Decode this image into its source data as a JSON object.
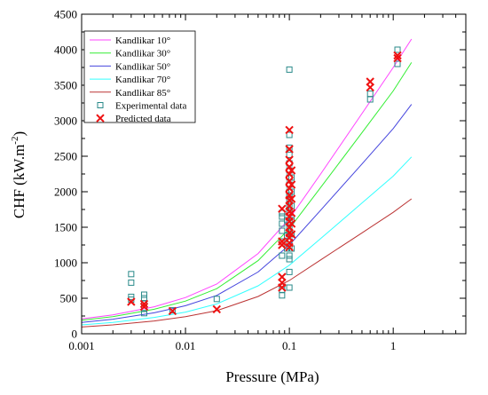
{
  "chart_data": {
    "type": "scatter",
    "xlabel": "Pressure (MPa)",
    "ylabel": "CHF (kW.m",
    "ylabel_sup": "-2",
    "ylabel_end": ")",
    "xscale": "log",
    "xlim": [
      0.001,
      5
    ],
    "ylim": [
      0,
      4500
    ],
    "x_ticks": [
      0.001,
      0.01,
      0.1,
      1
    ],
    "x_tick_labels": [
      "0.001",
      "0.01",
      "0.1",
      "1"
    ],
    "y_ticks": [
      0,
      500,
      1000,
      1500,
      2000,
      2500,
      3000,
      3500,
      4000,
      4500
    ],
    "y_tick_labels": [
      "0",
      "500",
      "1000",
      "1500",
      "2000",
      "2500",
      "3000",
      "3500",
      "4000",
      "4500"
    ],
    "grid": false,
    "legend_position": "top-left",
    "curves": [
      {
        "name": "Kandlikar 10°",
        "color": "#ff44ff",
        "x": [
          0.001,
          0.002,
          0.005,
          0.01,
          0.02,
          0.05,
          0.1,
          0.2,
          0.5,
          1.0,
          1.5
        ],
        "y": [
          210,
          265,
          380,
          510,
          700,
          1130,
          1620,
          2250,
          3100,
          3750,
          4150
        ]
      },
      {
        "name": "Kandlikar 30°",
        "color": "#33ee33",
        "x": [
          0.001,
          0.002,
          0.005,
          0.01,
          0.02,
          0.05,
          0.1,
          0.2,
          0.5,
          1.0,
          1.5
        ],
        "y": [
          190,
          240,
          345,
          460,
          635,
          1030,
          1480,
          2060,
          2830,
          3420,
          3820
        ]
      },
      {
        "name": "Kandlikar 50°",
        "color": "#4444dd",
        "x": [
          0.001,
          0.002,
          0.005,
          0.01,
          0.02,
          0.05,
          0.1,
          0.2,
          0.5,
          1.0,
          1.5
        ],
        "y": [
          160,
          205,
          295,
          395,
          540,
          870,
          1250,
          1740,
          2390,
          2890,
          3230
        ]
      },
      {
        "name": "Kandlikar 70°",
        "color": "#33ffff",
        "x": [
          0.001,
          0.002,
          0.005,
          0.01,
          0.02,
          0.05,
          0.1,
          0.2,
          0.5,
          1.0,
          1.5
        ],
        "y": [
          125,
          160,
          230,
          305,
          420,
          675,
          965,
          1340,
          1840,
          2220,
          2490
        ]
      },
      {
        "name": "Kandlikar 85°",
        "color": "#bb3333",
        "x": [
          0.001,
          0.002,
          0.005,
          0.01,
          0.02,
          0.05,
          0.1,
          0.2,
          0.5,
          1.0,
          1.5
        ],
        "y": [
          95,
          125,
          180,
          240,
          325,
          525,
          750,
          1040,
          1420,
          1710,
          1900
        ]
      }
    ],
    "experimental": {
      "name": "Experimental data",
      "color": "#2a8a8a",
      "points": [
        [
          0.003,
          840
        ],
        [
          0.003,
          720
        ],
        [
          0.003,
          520
        ],
        [
          0.003,
          480
        ],
        [
          0.004,
          550
        ],
        [
          0.004,
          500
        ],
        [
          0.004,
          430
        ],
        [
          0.004,
          350
        ],
        [
          0.004,
          290
        ],
        [
          0.0075,
          330
        ],
        [
          0.02,
          490
        ],
        [
          0.085,
          540
        ],
        [
          0.085,
          620
        ],
        [
          0.085,
          1100
        ],
        [
          0.085,
          1300
        ],
        [
          0.085,
          1450
        ],
        [
          0.085,
          1550
        ],
        [
          0.085,
          1650
        ],
        [
          0.085,
          1700
        ],
        [
          0.095,
          1200
        ],
        [
          0.095,
          1380
        ],
        [
          0.095,
          1600
        ],
        [
          0.1,
          3720
        ],
        [
          0.1,
          2800
        ],
        [
          0.1,
          2620
        ],
        [
          0.1,
          2520
        ],
        [
          0.1,
          2400
        ],
        [
          0.1,
          2300
        ],
        [
          0.1,
          2200
        ],
        [
          0.1,
          2100
        ],
        [
          0.1,
          2000
        ],
        [
          0.1,
          1950
        ],
        [
          0.1,
          1900
        ],
        [
          0.1,
          1800
        ],
        [
          0.1,
          1700
        ],
        [
          0.1,
          1600
        ],
        [
          0.1,
          1500
        ],
        [
          0.1,
          1400
        ],
        [
          0.1,
          1300
        ],
        [
          0.1,
          1200
        ],
        [
          0.1,
          1100
        ],
        [
          0.1,
          1050
        ],
        [
          0.1,
          870
        ],
        [
          0.1,
          650
        ],
        [
          0.105,
          2200
        ],
        [
          0.105,
          2000
        ],
        [
          0.105,
          1800
        ],
        [
          0.105,
          1600
        ],
        [
          0.105,
          1400
        ],
        [
          0.105,
          1200
        ],
        [
          0.6,
          3380
        ],
        [
          0.6,
          3300
        ],
        [
          1.1,
          4000
        ],
        [
          1.1,
          3800
        ]
      ]
    },
    "predicted": {
      "name": "Predicted data",
      "color": "#ee1111",
      "points": [
        [
          0.003,
          450
        ],
        [
          0.004,
          420
        ],
        [
          0.004,
          380
        ],
        [
          0.0075,
          320
        ],
        [
          0.02,
          345
        ],
        [
          0.085,
          1760
        ],
        [
          0.085,
          1300
        ],
        [
          0.085,
          1250
        ],
        [
          0.085,
          800
        ],
        [
          0.085,
          720
        ],
        [
          0.085,
          650
        ],
        [
          0.1,
          2870
        ],
        [
          0.1,
          2600
        ],
        [
          0.1,
          2450
        ],
        [
          0.1,
          2350
        ],
        [
          0.1,
          2250
        ],
        [
          0.1,
          2150
        ],
        [
          0.1,
          2050
        ],
        [
          0.1,
          1950
        ],
        [
          0.1,
          1880
        ],
        [
          0.1,
          1800
        ],
        [
          0.1,
          1720
        ],
        [
          0.1,
          1650
        ],
        [
          0.1,
          1580
        ],
        [
          0.1,
          1500
        ],
        [
          0.1,
          1420
        ],
        [
          0.1,
          1350
        ],
        [
          0.1,
          1280
        ],
        [
          0.1,
          1220
        ],
        [
          0.105,
          2300
        ],
        [
          0.105,
          2100
        ],
        [
          0.105,
          1900
        ],
        [
          0.105,
          1700
        ],
        [
          0.105,
          1550
        ],
        [
          0.105,
          1400
        ],
        [
          0.6,
          3550
        ],
        [
          0.6,
          3470
        ],
        [
          1.1,
          3920
        ],
        [
          1.1,
          3880
        ]
      ]
    }
  }
}
